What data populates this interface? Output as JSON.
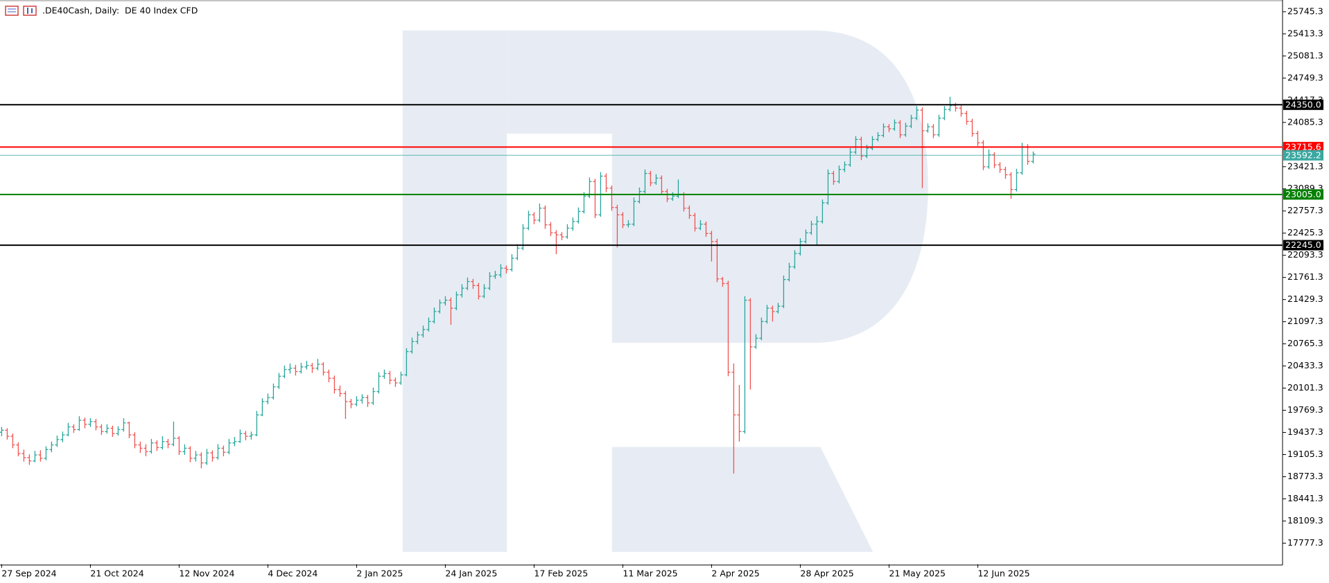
{
  "chart_data": {
    "type": "ohlc",
    "title": ".DE40Cash, Daily:  DE 40 Index CFD",
    "up_color": "#26a69a",
    "down_color": "#ef5350",
    "ylim": [
      17460,
      25900
    ],
    "yticks": [
      {
        "value": 25745.3,
        "label": "25745.3"
      },
      {
        "value": 25413.3,
        "label": "25413.3"
      },
      {
        "value": 25081.3,
        "label": "25081.3"
      },
      {
        "value": 24749.3,
        "label": "24749.3"
      },
      {
        "value": 24417.3,
        "label": "24417.3"
      },
      {
        "value": 24085.3,
        "label": "24085.3"
      },
      {
        "value": 23421.3,
        "label": "23421.3"
      },
      {
        "value": 23089.3,
        "label": "23089.3"
      },
      {
        "value": 22757.3,
        "label": "22757.3"
      },
      {
        "value": 22425.3,
        "label": "22425.3"
      },
      {
        "value": 22093.3,
        "label": "22093.3"
      },
      {
        "value": 21761.3,
        "label": "21761.3"
      },
      {
        "value": 21429.3,
        "label": "21429.3"
      },
      {
        "value": 21097.3,
        "label": "21097.3"
      },
      {
        "value": 20765.3,
        "label": "20765.3"
      },
      {
        "value": 20433.3,
        "label": "20433.3"
      },
      {
        "value": 20101.3,
        "label": "20101.3"
      },
      {
        "value": 19769.3,
        "label": "19769.3"
      },
      {
        "value": 19437.3,
        "label": "19437.3"
      },
      {
        "value": 19105.3,
        "label": "19105.3"
      },
      {
        "value": 18773.3,
        "label": "18773.3"
      },
      {
        "value": 18441.3,
        "label": "18441.3"
      },
      {
        "value": 18109.3,
        "label": "18109.3"
      },
      {
        "value": 17777.3,
        "label": "17777.3"
      }
    ],
    "levels": [
      {
        "value": 24350,
        "label": "24350.0",
        "color": "#000000"
      },
      {
        "value": 23715.6,
        "label": "23715.6",
        "color": "#ff0000"
      },
      {
        "value": 23592.2,
        "label": "23592.2",
        "color": "#3aa8a0"
      },
      {
        "value": 23005,
        "label": "23005.0",
        "color": "#008000"
      },
      {
        "value": 22245,
        "label": "22245.0",
        "color": "#000000"
      }
    ],
    "categories": [
      "27 Sep 2024",
      null,
      null,
      null,
      null,
      null,
      null,
      null,
      null,
      null,
      null,
      null,
      null,
      null,
      null,
      null,
      "21 Oct 2024",
      null,
      null,
      null,
      null,
      null,
      null,
      null,
      null,
      null,
      null,
      null,
      null,
      null,
      null,
      null,
      "12 Nov 2024",
      null,
      null,
      null,
      null,
      null,
      null,
      null,
      null,
      null,
      null,
      null,
      null,
      null,
      null,
      null,
      "4 Dec 2024",
      null,
      null,
      null,
      null,
      null,
      null,
      null,
      null,
      null,
      null,
      null,
      null,
      null,
      null,
      null,
      "2 Jan 2025",
      null,
      null,
      null,
      null,
      null,
      null,
      null,
      null,
      null,
      null,
      null,
      null,
      null,
      null,
      null,
      "24 Jan 2025",
      null,
      null,
      null,
      null,
      null,
      null,
      null,
      null,
      null,
      null,
      null,
      null,
      null,
      null,
      null,
      "17 Feb 2025",
      null,
      null,
      null,
      null,
      null,
      null,
      null,
      null,
      null,
      null,
      null,
      null,
      null,
      null,
      null,
      "11 Mar 2025",
      null,
      null,
      null,
      null,
      null,
      null,
      null,
      null,
      null,
      null,
      null,
      null,
      null,
      null,
      null,
      "2 Apr 2025",
      null,
      null,
      null,
      null,
      null,
      null,
      null,
      null,
      null,
      null,
      null,
      null,
      null,
      null,
      null,
      "28 Apr 2025",
      null,
      null,
      null,
      null,
      null,
      null,
      null,
      null,
      null,
      null,
      null,
      null,
      null,
      null,
      null,
      "21 May 2025",
      null,
      null,
      null,
      null,
      null,
      null,
      null,
      null,
      null,
      null,
      null,
      null,
      null,
      null,
      null,
      "12 Jun 2025",
      null,
      null,
      null,
      null,
      null,
      null,
      null,
      null,
      null,
      null
    ],
    "ohlc": [
      [
        19440,
        19520,
        19380,
        19470
      ],
      [
        19470,
        19500,
        19330,
        19380
      ],
      [
        19380,
        19420,
        19200,
        19250
      ],
      [
        19250,
        19290,
        19080,
        19120
      ],
      [
        19120,
        19180,
        19000,
        19060
      ],
      [
        19060,
        19110,
        18950,
        19010
      ],
      [
        19010,
        19160,
        18990,
        19100
      ],
      [
        19100,
        19170,
        19000,
        19050
      ],
      [
        19050,
        19230,
        19020,
        19180
      ],
      [
        19180,
        19300,
        19140,
        19250
      ],
      [
        19250,
        19390,
        19220,
        19330
      ],
      [
        19330,
        19450,
        19290,
        19400
      ],
      [
        19400,
        19580,
        19380,
        19520
      ],
      [
        19520,
        19560,
        19430,
        19480
      ],
      [
        19480,
        19680,
        19460,
        19620
      ],
      [
        19620,
        19660,
        19500,
        19560
      ],
      [
        19560,
        19650,
        19520,
        19600
      ],
      [
        19600,
        19640,
        19470,
        19520
      ],
      [
        19520,
        19560,
        19400,
        19450
      ],
      [
        19450,
        19560,
        19420,
        19500
      ],
      [
        19500,
        19540,
        19370,
        19420
      ],
      [
        19420,
        19530,
        19390,
        19480
      ],
      [
        19480,
        19650,
        19450,
        19580
      ],
      [
        19580,
        19600,
        19350,
        19400
      ],
      [
        19400,
        19440,
        19200,
        19250
      ],
      [
        19250,
        19300,
        19130,
        19200
      ],
      [
        19200,
        19260,
        19080,
        19150
      ],
      [
        19150,
        19340,
        19120,
        19280
      ],
      [
        19280,
        19320,
        19160,
        19210
      ],
      [
        19210,
        19380,
        19180,
        19300
      ],
      [
        19300,
        19340,
        19200,
        19260
      ],
      [
        19260,
        19600,
        19230,
        19350
      ],
      [
        19350,
        19380,
        19100,
        19150
      ],
      [
        19150,
        19260,
        19100,
        19200
      ],
      [
        19200,
        19230,
        18990,
        19050
      ],
      [
        19050,
        19160,
        19000,
        19100
      ],
      [
        19100,
        19140,
        18900,
        18980
      ],
      [
        18980,
        19190,
        18950,
        19130
      ],
      [
        19130,
        19170,
        19000,
        19060
      ],
      [
        19060,
        19260,
        19030,
        19200
      ],
      [
        19200,
        19240,
        19080,
        19140
      ],
      [
        19140,
        19340,
        19110,
        19280
      ],
      [
        19280,
        19370,
        19230,
        19300
      ],
      [
        19300,
        19480,
        19280,
        19420
      ],
      [
        19420,
        19460,
        19320,
        19380
      ],
      [
        19380,
        19450,
        19330,
        19400
      ],
      [
        19400,
        19760,
        19380,
        19700
      ],
      [
        19700,
        19950,
        19680,
        19900
      ],
      [
        19900,
        20020,
        19860,
        19960
      ],
      [
        19960,
        20170,
        19930,
        20120
      ],
      [
        20120,
        20330,
        20090,
        20280
      ],
      [
        20280,
        20440,
        20250,
        20380
      ],
      [
        20380,
        20470,
        20320,
        20400
      ],
      [
        20400,
        20450,
        20290,
        20350
      ],
      [
        20350,
        20480,
        20320,
        20420
      ],
      [
        20420,
        20510,
        20380,
        20440
      ],
      [
        20440,
        20480,
        20330,
        20400
      ],
      [
        20400,
        20540,
        20370,
        20460
      ],
      [
        20460,
        20490,
        20290,
        20340
      ],
      [
        20340,
        20380,
        20190,
        20250
      ],
      [
        20250,
        20290,
        20020,
        20080
      ],
      [
        20080,
        20140,
        19970,
        20020
      ],
      [
        20020,
        20060,
        19640,
        19900
      ],
      [
        19900,
        19940,
        19800,
        19860
      ],
      [
        19860,
        19980,
        19830,
        19920
      ],
      [
        19920,
        20010,
        19870,
        19960
      ],
      [
        19960,
        20000,
        19820,
        19880
      ],
      [
        19880,
        20110,
        19850,
        20050
      ],
      [
        20050,
        20340,
        20020,
        20280
      ],
      [
        20280,
        20380,
        20240,
        20320
      ],
      [
        20320,
        20360,
        20160,
        20220
      ],
      [
        20220,
        20260,
        20120,
        20180
      ],
      [
        20180,
        20350,
        20150,
        20300
      ],
      [
        20300,
        20700,
        20280,
        20650
      ],
      [
        20650,
        20860,
        20620,
        20800
      ],
      [
        20800,
        20950,
        20760,
        20900
      ],
      [
        20900,
        21040,
        20860,
        20980
      ],
      [
        20980,
        21160,
        20950,
        21100
      ],
      [
        21100,
        21310,
        21070,
        21250
      ],
      [
        21250,
        21430,
        21220,
        21380
      ],
      [
        21380,
        21480,
        21340,
        21420
      ],
      [
        21420,
        21460,
        21050,
        21300
      ],
      [
        21300,
        21550,
        21270,
        21500
      ],
      [
        21500,
        21660,
        21460,
        21600
      ],
      [
        21600,
        21760,
        21570,
        21700
      ],
      [
        21700,
        21740,
        21590,
        21640
      ],
      [
        21640,
        21680,
        21430,
        21480
      ],
      [
        21480,
        21660,
        21450,
        21600
      ],
      [
        21600,
        21840,
        21570,
        21780
      ],
      [
        21780,
        21860,
        21740,
        21800
      ],
      [
        21800,
        21960,
        21760,
        21900
      ],
      [
        21900,
        21940,
        21820,
        21880
      ],
      [
        21880,
        22110,
        21850,
        22050
      ],
      [
        22050,
        22260,
        22020,
        22200
      ],
      [
        22200,
        22560,
        22170,
        22500
      ],
      [
        22500,
        22760,
        22470,
        22700
      ],
      [
        22700,
        22740,
        22560,
        22620
      ],
      [
        22620,
        22870,
        22590,
        22800
      ],
      [
        22800,
        22840,
        22490,
        22550
      ],
      [
        22550,
        22590,
        22380,
        22430
      ],
      [
        22430,
        22470,
        22110,
        22400
      ],
      [
        22400,
        22440,
        22320,
        22370
      ],
      [
        22370,
        22560,
        22340,
        22500
      ],
      [
        22500,
        22660,
        22460,
        22600
      ],
      [
        22600,
        22810,
        22570,
        22750
      ],
      [
        22750,
        23040,
        22720,
        22980
      ],
      [
        22980,
        23260,
        22950,
        23200
      ],
      [
        23200,
        23240,
        22650,
        22700
      ],
      [
        22700,
        23340,
        22670,
        23280
      ],
      [
        23280,
        23320,
        23040,
        23100
      ],
      [
        23100,
        23140,
        22760,
        22810
      ],
      [
        22810,
        22850,
        22210,
        22700
      ],
      [
        22700,
        22740,
        22500,
        22550
      ],
      [
        22550,
        22620,
        22510,
        22560
      ],
      [
        22560,
        22960,
        22530,
        22900
      ],
      [
        22900,
        23110,
        22870,
        23050
      ],
      [
        23050,
        23380,
        23020,
        23320
      ],
      [
        23320,
        23360,
        23130,
        23180
      ],
      [
        23180,
        23310,
        23150,
        23250
      ],
      [
        23250,
        23290,
        23000,
        23050
      ],
      [
        23050,
        23090,
        22890,
        22940
      ],
      [
        22940,
        23040,
        22910,
        22980
      ],
      [
        22980,
        23230,
        22950,
        23000
      ],
      [
        23000,
        23040,
        22750,
        22800
      ],
      [
        22800,
        22840,
        22640,
        22690
      ],
      [
        22690,
        22730,
        22450,
        22500
      ],
      [
        22500,
        22620,
        22470,
        22560
      ],
      [
        22560,
        22600,
        22370,
        22420
      ],
      [
        22420,
        22460,
        22000,
        22300
      ],
      [
        22300,
        22340,
        21690,
        21740
      ],
      [
        21740,
        21770,
        21620,
        21670
      ],
      [
        21670,
        21710,
        20280,
        20340
      ],
      [
        20340,
        20470,
        18820,
        19700
      ],
      [
        19700,
        20150,
        19300,
        19450
      ],
      [
        19450,
        21480,
        19420,
        21420
      ],
      [
        21420,
        21450,
        20080,
        20720
      ],
      [
        20720,
        20910,
        20690,
        20850
      ],
      [
        20850,
        21160,
        20820,
        21100
      ],
      [
        21100,
        21350,
        21070,
        21300
      ],
      [
        21300,
        21340,
        21100,
        21250
      ],
      [
        21250,
        21380,
        21220,
        21330
      ],
      [
        21330,
        21790,
        21300,
        21730
      ],
      [
        21730,
        21980,
        21700,
        21920
      ],
      [
        21920,
        22170,
        21890,
        22120
      ],
      [
        22120,
        22350,
        22090,
        22300
      ],
      [
        22300,
        22480,
        22270,
        22430
      ],
      [
        22430,
        22610,
        22400,
        22560
      ],
      [
        22560,
        22680,
        22250,
        22600
      ],
      [
        22600,
        22930,
        22570,
        22880
      ],
      [
        22880,
        23380,
        22850,
        23320
      ],
      [
        23320,
        23360,
        23150,
        23200
      ],
      [
        23200,
        23440,
        23170,
        23380
      ],
      [
        23380,
        23500,
        23340,
        23450
      ],
      [
        23450,
        23700,
        23420,
        23640
      ],
      [
        23640,
        23880,
        23610,
        23830
      ],
      [
        23830,
        23870,
        23520,
        23580
      ],
      [
        23580,
        23750,
        23550,
        23700
      ],
      [
        23700,
        23880,
        23670,
        23830
      ],
      [
        23830,
        23940,
        23800,
        23890
      ],
      [
        23890,
        24070,
        23860,
        24020
      ],
      [
        24020,
        24060,
        23940,
        23990
      ],
      [
        23990,
        24130,
        23960,
        24080
      ],
      [
        24080,
        24120,
        23850,
        23900
      ],
      [
        23900,
        24080,
        23870,
        24030
      ],
      [
        24030,
        24200,
        24000,
        24150
      ],
      [
        24150,
        24330,
        24120,
        24270
      ],
      [
        24270,
        24310,
        23100,
        23960
      ],
      [
        23960,
        24070,
        23930,
        24020
      ],
      [
        24020,
        24060,
        23850,
        23900
      ],
      [
        23900,
        24200,
        23870,
        24150
      ],
      [
        24150,
        24330,
        24120,
        24280
      ],
      [
        24280,
        24470,
        24250,
        24340
      ],
      [
        24340,
        24380,
        24250,
        24300
      ],
      [
        24300,
        24340,
        24170,
        24220
      ],
      [
        24220,
        24260,
        24050,
        24100
      ],
      [
        24100,
        24140,
        23870,
        23920
      ],
      [
        23920,
        23960,
        23730,
        23780
      ],
      [
        23780,
        23820,
        23370,
        23420
      ],
      [
        23420,
        23680,
        23390,
        23600
      ],
      [
        23600,
        23640,
        23400,
        23450
      ],
      [
        23450,
        23490,
        23330,
        23380
      ],
      [
        23380,
        23420,
        23240,
        23300
      ],
      [
        23300,
        23340,
        22940,
        23080
      ],
      [
        23080,
        23390,
        23050,
        23330
      ],
      [
        23330,
        23780,
        23300,
        23720
      ],
      [
        23720,
        23760,
        23450,
        23500
      ],
      [
        23500,
        23650,
        23470,
        23610
      ]
    ]
  }
}
